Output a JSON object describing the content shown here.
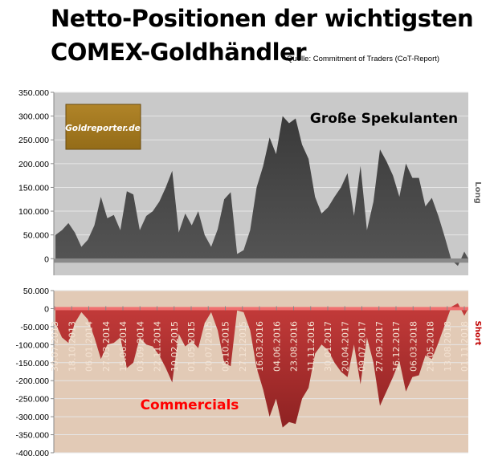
{
  "title_line1": "Netto-Positionen der wichtigsten",
  "title_line2": "COMEX-Goldhändler",
  "source": "Quelle: Commitment of Traders (CoT-Report)",
  "logo_text": "Goldreporter.de",
  "colors": {
    "speculators": "#474747",
    "commercials": "#b3302f",
    "top_bg": "#c9c9c9",
    "bottom_bg": "#e2cab6",
    "commercials_label": "#ff0000",
    "short_label": "#c00000"
  },
  "chart_data": [
    {
      "type": "area",
      "name": "Große Spekulanten",
      "side_label": "Long",
      "ylim": [
        -35000,
        350000
      ],
      "yticks": [
        "350.000",
        "300.000",
        "250.000",
        "200.000",
        "150.000",
        "100.000",
        "50.000",
        "0"
      ],
      "ytick_values": [
        350000,
        300000,
        250000,
        200000,
        150000,
        100000,
        50000,
        0
      ],
      "grid": true,
      "x": [
        "2013-08",
        "2013-09",
        "2013-10",
        "2013-11",
        "2013-12",
        "2014-01",
        "2014-02",
        "2014-03",
        "2014-04",
        "2014-05",
        "2014-06",
        "2014-07",
        "2014-08",
        "2014-09",
        "2014-10",
        "2014-11",
        "2014-12",
        "2015-01",
        "2015-02",
        "2015-03",
        "2015-04",
        "2015-05",
        "2015-06",
        "2015-07",
        "2015-08",
        "2015-09",
        "2015-10",
        "2015-11",
        "2015-12",
        "2016-01",
        "2016-02",
        "2016-03",
        "2016-04",
        "2016-05",
        "2016-06",
        "2016-07",
        "2016-08",
        "2016-09",
        "2016-10",
        "2016-11",
        "2016-12",
        "2017-01",
        "2017-02",
        "2017-03",
        "2017-04",
        "2017-05",
        "2017-06",
        "2017-07",
        "2017-08",
        "2017-09",
        "2017-10",
        "2017-11",
        "2017-12",
        "2018-01",
        "2018-02",
        "2018-03",
        "2018-04",
        "2018-05",
        "2018-06",
        "2018-07",
        "2018-08",
        "2018-09",
        "2018-10",
        "2018-11"
      ],
      "values": [
        50000,
        60000,
        75000,
        55000,
        25000,
        40000,
        70000,
        130000,
        85000,
        92000,
        60000,
        142000,
        135000,
        60000,
        90000,
        100000,
        120000,
        150000,
        185000,
        55000,
        95000,
        70000,
        100000,
        50000,
        25000,
        62000,
        125000,
        140000,
        10000,
        18000,
        60000,
        150000,
        195000,
        255000,
        220000,
        300000,
        285000,
        295000,
        240000,
        210000,
        130000,
        95000,
        108000,
        130000,
        150000,
        180000,
        90000,
        195000,
        60000,
        120000,
        230000,
        205000,
        175000,
        130000,
        200000,
        170000,
        170000,
        110000,
        128000,
        90000,
        45000,
        -3000,
        -15000,
        15000
      ]
    },
    {
      "type": "area",
      "name": "Commercials",
      "side_label": "Short",
      "ylim": [
        -400000,
        50000
      ],
      "yticks": [
        "50.000",
        "0",
        "-50.000",
        "-100.000",
        "-150.000",
        "-200.000",
        "-250.000",
        "-300.000",
        "-350.000",
        "-400.000"
      ],
      "ytick_values": [
        50000,
        0,
        -50000,
        -100000,
        -150000,
        -200000,
        -250000,
        -300000,
        -350000,
        -400000
      ],
      "xtick_labels": [
        "30.07.2013",
        "18.10.2013",
        "06.01.2014",
        "27.03.2014",
        "15.06.2014",
        "03.09.2014",
        "22.11.2014",
        "10.02.2015",
        "01.05.2015",
        "20.07.2015",
        "08.10.2015",
        "27.12.2015",
        "16.03.2016",
        "04.06.2016",
        "23.08.2016",
        "11.11.2016",
        "30.01.2017",
        "20.04.2017",
        "09.07.2017",
        "27.09.2017",
        "16.12.2017",
        "06.03.2018",
        "25.05.2018",
        "13.08.2018",
        "01.11.2018"
      ],
      "grid": true,
      "values": [
        -40000,
        -80000,
        -95000,
        -40000,
        -10000,
        -30000,
        -80000,
        -140000,
        -100000,
        -95000,
        -80000,
        -165000,
        -150000,
        -80000,
        -100000,
        -105000,
        -130000,
        -165000,
        -205000,
        -70000,
        -105000,
        -90000,
        -110000,
        -40000,
        -10000,
        -60000,
        -150000,
        -160000,
        -5000,
        -10000,
        -60000,
        -165000,
        -225000,
        -300000,
        -250000,
        -330000,
        -315000,
        -320000,
        -250000,
        -220000,
        -125000,
        -100000,
        -115000,
        -150000,
        -175000,
        -190000,
        -100000,
        -210000,
        -80000,
        -150000,
        -270000,
        -230000,
        -190000,
        -145000,
        -230000,
        -190000,
        -185000,
        -130000,
        -140000,
        -95000,
        -45000,
        5000,
        15000,
        -20000
      ]
    }
  ]
}
